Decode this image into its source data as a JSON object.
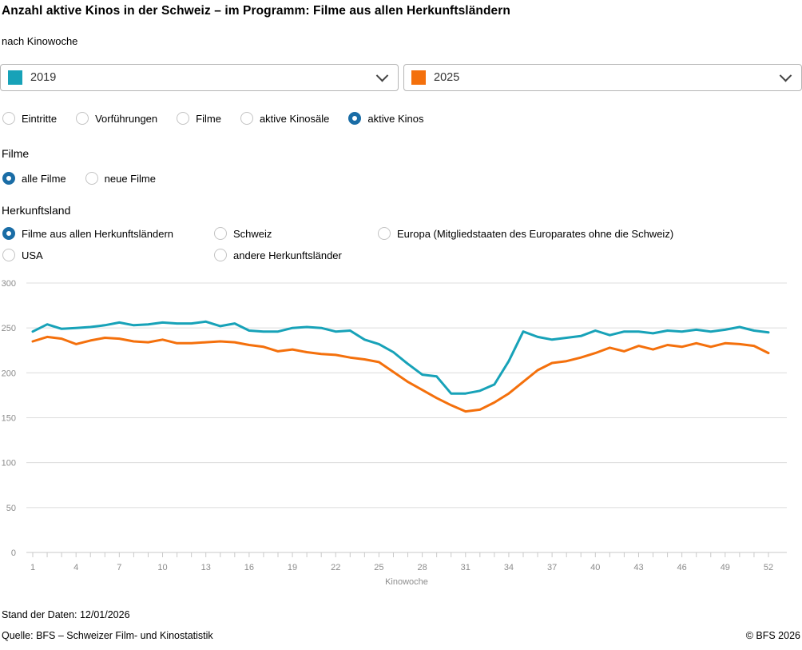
{
  "header": {
    "title": "Anzahl aktive Kinos in der Schweiz – im Programm: Filme aus allen Herkunftsländern",
    "subtitle": "nach Kinowoche"
  },
  "selectors": {
    "left": {
      "value": "2019",
      "color": "#17a2b8"
    },
    "right": {
      "value": "2025",
      "color": "#f4700c"
    }
  },
  "colors": {
    "radio_selected": "#1a6da6",
    "grid": "#dcdcdc",
    "axis_zero_line": "#c9c9c9",
    "axis_text": "#8c8c8c"
  },
  "metric_options": [
    {
      "label": "Eintritte",
      "selected": false
    },
    {
      "label": "Vorführungen",
      "selected": false
    },
    {
      "label": "Filme",
      "selected": false
    },
    {
      "label": "aktive Kinosäle",
      "selected": false
    },
    {
      "label": "aktive Kinos",
      "selected": true
    }
  ],
  "filme_section": {
    "heading": "Filme",
    "options": [
      {
        "label": "alle Filme",
        "selected": true
      },
      {
        "label": "neue Filme",
        "selected": false
      }
    ]
  },
  "herkunftsland_section": {
    "heading": "Herkunftsland",
    "options": [
      {
        "label": "Filme aus allen Herkunftsländern",
        "selected": true
      },
      {
        "label": "Schweiz",
        "selected": false
      },
      {
        "label": "Europa (Mitgliedstaaten des Europarates ohne die Schweiz)",
        "selected": false
      },
      {
        "label": "USA",
        "selected": false
      },
      {
        "label": "andere Herkunftsländer",
        "selected": false
      }
    ]
  },
  "chart_data": {
    "type": "line",
    "xlabel": "Kinowoche",
    "x": [
      1,
      2,
      3,
      4,
      5,
      6,
      7,
      8,
      9,
      10,
      11,
      12,
      13,
      14,
      15,
      16,
      17,
      18,
      19,
      20,
      21,
      22,
      23,
      24,
      25,
      26,
      27,
      28,
      29,
      30,
      31,
      32,
      33,
      34,
      35,
      36,
      37,
      38,
      39,
      40,
      41,
      42,
      43,
      44,
      45,
      46,
      47,
      48,
      49,
      50,
      51,
      52
    ],
    "x_tick_labels": [
      1,
      4,
      7,
      10,
      13,
      16,
      19,
      22,
      25,
      28,
      31,
      34,
      37,
      40,
      43,
      46,
      49,
      52
    ],
    "ylim": [
      0,
      300
    ],
    "y_ticks": [
      0,
      50,
      100,
      150,
      200,
      250,
      300
    ],
    "grid": true,
    "legend_position": "in-dropdowns",
    "series": [
      {
        "name": "2019",
        "color": "#17a2b8",
        "values": [
          246,
          254,
          249,
          250,
          251,
          253,
          256,
          253,
          254,
          256,
          255,
          255,
          257,
          252,
          255,
          247,
          246,
          246,
          250,
          251,
          250,
          246,
          247,
          237,
          232,
          223,
          210,
          198,
          196,
          177,
          177,
          180,
          187,
          213,
          246,
          240,
          237,
          239,
          241,
          247,
          242,
          246,
          246,
          244,
          247,
          246,
          248,
          246,
          248,
          251,
          247,
          245
        ]
      },
      {
        "name": "2025",
        "color": "#f4700c",
        "values": [
          235,
          240,
          238,
          232,
          236,
          239,
          238,
          235,
          234,
          237,
          233,
          233,
          234,
          235,
          234,
          231,
          229,
          224,
          226,
          223,
          221,
          220,
          217,
          215,
          212,
          201,
          190,
          181,
          172,
          164,
          157,
          159,
          167,
          177,
          190,
          203,
          211,
          213,
          217,
          222,
          228,
          224,
          230,
          226,
          231,
          229,
          233,
          229,
          233,
          232,
          230,
          222
        ]
      }
    ]
  },
  "footer": {
    "stand": "Stand der Daten: 12/01/2026",
    "quelle": "Quelle: BFS – Schweizer Film- und Kinostatistik",
    "copyright": "© BFS 2026"
  }
}
